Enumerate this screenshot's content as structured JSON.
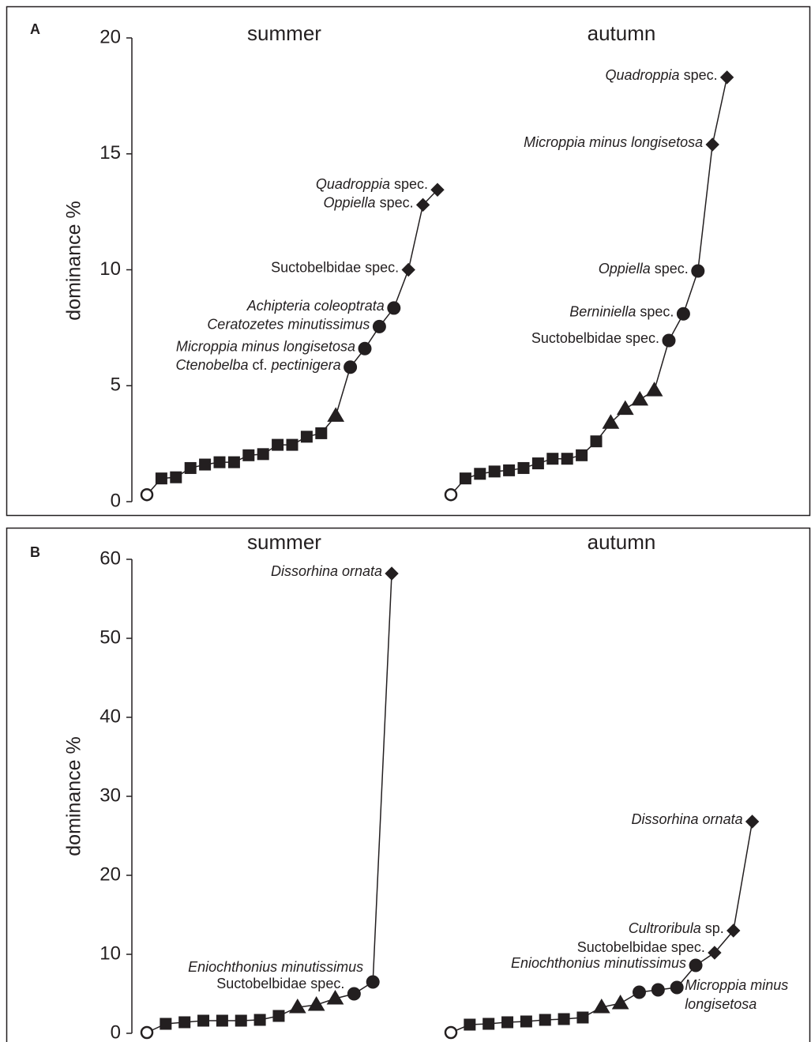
{
  "chart_data": [
    {
      "type": "line",
      "panel": "A",
      "ylabel": "dominance %",
      "ylim": [
        0,
        20
      ],
      "yticks": [
        0,
        5,
        10,
        15,
        20
      ],
      "series": [
        {
          "name": "summer",
          "color": "#231f20",
          "values": [
            0.3,
            1.0,
            1.05,
            1.45,
            1.6,
            1.7,
            1.7,
            2.0,
            2.05,
            2.45,
            2.45,
            2.8,
            2.95,
            3.7,
            5.8,
            6.6,
            7.55,
            8.35,
            10.0,
            12.8,
            13.45
          ],
          "markers": [
            "open-circle",
            "square",
            "square",
            "square",
            "square",
            "square",
            "square",
            "square",
            "square",
            "square",
            "square",
            "square",
            "square",
            "triangle",
            "circle",
            "circle",
            "circle",
            "circle",
            "diamond",
            "diamond",
            "diamond"
          ],
          "labels": [
            null,
            null,
            null,
            null,
            null,
            null,
            null,
            null,
            null,
            null,
            null,
            null,
            null,
            null,
            [
              {
                "text": "Ctenobelba",
                "italic": true
              },
              {
                "text": " cf. "
              },
              {
                "text": "pectinigera",
                "italic": true
              }
            ],
            [
              {
                "text": "Microppia minus longisetosa",
                "italic": true
              }
            ],
            [
              {
                "text": "Ceratozetes minutissimus",
                "italic": true
              }
            ],
            [
              {
                "text": "Achipteria coleoptrata",
                "italic": true
              }
            ],
            [
              {
                "text": "Suctobelbidae spec."
              }
            ],
            [
              {
                "text": "Oppiella",
                "italic": true
              },
              {
                "text": " spec."
              }
            ],
            [
              {
                "text": "Quadroppia",
                "italic": true
              },
              {
                "text": " spec."
              }
            ]
          ]
        },
        {
          "name": "autumn",
          "color": "#231f20",
          "values": [
            0.3,
            1.0,
            1.2,
            1.3,
            1.35,
            1.45,
            1.65,
            1.85,
            1.85,
            2.0,
            2.6,
            3.4,
            4.0,
            4.4,
            4.8,
            6.95,
            8.1,
            9.95,
            15.4,
            18.3
          ],
          "markers": [
            "open-circle",
            "square",
            "square",
            "square",
            "square",
            "square",
            "square",
            "square",
            "square",
            "square",
            "square",
            "triangle",
            "triangle",
            "triangle",
            "triangle",
            "circle",
            "circle",
            "circle",
            "diamond",
            "diamond"
          ],
          "labels": [
            null,
            null,
            null,
            null,
            null,
            null,
            null,
            null,
            null,
            null,
            null,
            null,
            null,
            null,
            null,
            [
              {
                "text": "Suctobelbidae spec."
              }
            ],
            [
              {
                "text": "Berniniella",
                "italic": true
              },
              {
                "text": " spec."
              }
            ],
            [
              {
                "text": "Oppiella",
                "italic": true
              },
              {
                "text": " spec."
              }
            ],
            [
              {
                "text": "Microppia minus longisetosa",
                "italic": true
              }
            ],
            [
              {
                "text": "Quadroppia",
                "italic": true
              },
              {
                "text": " spec."
              }
            ]
          ]
        }
      ]
    },
    {
      "type": "line",
      "panel": "B",
      "ylabel": "dominance %",
      "ylim": [
        0,
        60
      ],
      "yticks": [
        0,
        10,
        20,
        30,
        40,
        50,
        60
      ],
      "series": [
        {
          "name": "summer",
          "color": "#231f20",
          "values": [
            0.1,
            1.2,
            1.4,
            1.6,
            1.6,
            1.6,
            1.7,
            2.2,
            3.3,
            3.6,
            4.4,
            5.0,
            6.5,
            58.2
          ],
          "markers": [
            "open-circle",
            "square",
            "square",
            "square",
            "square",
            "square",
            "square",
            "square",
            "triangle",
            "triangle",
            "triangle",
            "circle",
            "circle",
            "diamond"
          ],
          "labels": [
            null,
            null,
            null,
            null,
            null,
            null,
            null,
            null,
            null,
            null,
            null,
            [
              {
                "text": "Suctobelbidae spec."
              }
            ],
            [
              {
                "text": "Eniochthonius minutissimus",
                "italic": true
              }
            ],
            [
              {
                "text": "Dissorhina ornata",
                "italic": true
              }
            ]
          ]
        },
        {
          "name": "autumn",
          "color": "#231f20",
          "values": [
            0.1,
            1.1,
            1.2,
            1.4,
            1.5,
            1.7,
            1.8,
            2.0,
            3.3,
            3.8,
            5.2,
            5.5,
            5.8,
            8.6,
            10.2,
            13.0,
            26.8
          ],
          "markers": [
            "open-circle",
            "square",
            "square",
            "square",
            "square",
            "square",
            "square",
            "square",
            "triangle",
            "triangle",
            "circle",
            "circle",
            "circle",
            "circle",
            "diamond",
            "diamond",
            "diamond"
          ],
          "labels": [
            null,
            null,
            null,
            null,
            null,
            null,
            null,
            null,
            null,
            null,
            null,
            null,
            [
              {
                "text": "Microppia minus",
                "italic": true
              },
              {
                "text": "longisetosa",
                "italic": true
              }
            ],
            [
              {
                "text": "Eniochthonius minutissimus",
                "italic": true
              }
            ],
            [
              {
                "text": "Suctobelbidae spec."
              }
            ],
            [
              {
                "text": "Cultroribula",
                "italic": true
              },
              {
                "text": " sp."
              }
            ],
            [
              {
                "text": "Dissorhina ornata",
                "italic": true
              }
            ]
          ]
        }
      ]
    }
  ]
}
